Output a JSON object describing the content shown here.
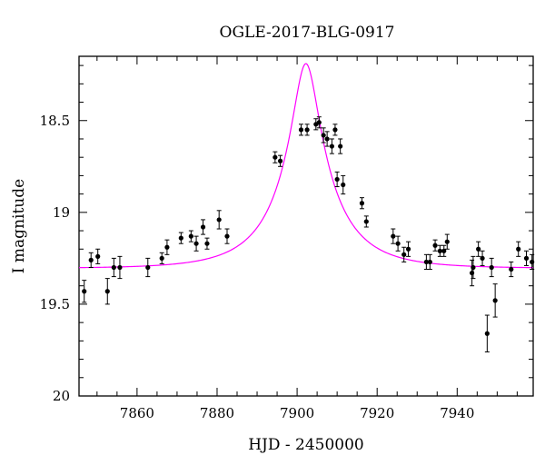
{
  "chart_data": {
    "type": "scatter",
    "title": "OGLE-2017-BLG-0917",
    "xlabel": "HJD - 2450000",
    "ylabel": "I magnitude",
    "xlim": [
      7845.5,
      7959
    ],
    "ylim": [
      20.0,
      18.15
    ],
    "y_axis_inverted": true,
    "grid": false,
    "x_ticks": [
      7860,
      7880,
      7900,
      7920,
      7940
    ],
    "x_tick_labels": [
      "7860",
      "7880",
      "7900",
      "7920",
      "7940"
    ],
    "y_ticks": [
      18.5,
      19.0,
      19.5,
      20.0
    ],
    "y_tick_labels": [
      "18.5",
      "19",
      "19.5",
      "20"
    ],
    "colors": {
      "data": "#000000",
      "model": "#ff00ff",
      "axes": "#000000"
    },
    "model": {
      "type": "single-lens point-source fit",
      "t0": 7902.2,
      "tE": 15.5,
      "u0": 0.2,
      "baseline_mag": 19.305,
      "blend_fraction": 0.44
    },
    "series": [
      {
        "type": "scatter-errorbar",
        "x": [
          7846.8,
          7848.5,
          7850.2,
          7852.6,
          7854.2,
          7855.7,
          7862.7,
          7866.2,
          7867.5,
          7871.0,
          7873.5,
          7874.8,
          7876.5,
          7877.5,
          7880.5,
          7882.5,
          7894.5,
          7895.8,
          7901.0,
          7902.5,
          7904.7,
          7905.5,
          7906.6,
          7907.5,
          7908.7,
          7909.5,
          7910.0,
          7910.8,
          7911.5,
          7916.2,
          7917.3,
          7924.0,
          7925.2,
          7926.7,
          7927.8,
          7932.3,
          7933.2,
          7934.5,
          7935.7,
          7936.7,
          7937.5,
          7943.7,
          7944.0,
          7945.3,
          7946.3,
          7947.5,
          7948.6,
          7949.5,
          7953.5,
          7955.3,
          7957.3,
          7958.7
        ],
        "y": [
          19.43,
          19.26,
          19.24,
          19.43,
          19.3,
          19.3,
          19.3,
          19.25,
          19.19,
          19.14,
          19.13,
          19.17,
          19.08,
          19.17,
          19.04,
          19.13,
          18.7,
          18.72,
          18.55,
          18.55,
          18.52,
          18.51,
          18.58,
          18.6,
          18.64,
          18.55,
          18.82,
          18.64,
          18.85,
          18.95,
          19.05,
          19.13,
          19.17,
          19.23,
          19.2,
          19.27,
          19.27,
          19.18,
          19.21,
          19.21,
          19.16,
          19.33,
          19.3,
          19.2,
          19.25,
          19.66,
          19.3,
          19.48,
          19.31,
          19.2,
          19.25,
          19.27
        ],
        "yerr": [
          0.06,
          0.04,
          0.04,
          0.07,
          0.05,
          0.06,
          0.05,
          0.03,
          0.04,
          0.03,
          0.03,
          0.04,
          0.04,
          0.03,
          0.05,
          0.04,
          0.03,
          0.03,
          0.03,
          0.03,
          0.03,
          0.03,
          0.04,
          0.04,
          0.04,
          0.03,
          0.04,
          0.04,
          0.05,
          0.03,
          0.03,
          0.04,
          0.04,
          0.04,
          0.04,
          0.04,
          0.04,
          0.03,
          0.03,
          0.03,
          0.04,
          0.07,
          0.06,
          0.04,
          0.04,
          0.1,
          0.05,
          0.09,
          0.04,
          0.04,
          0.04,
          0.04
        ]
      }
    ]
  }
}
